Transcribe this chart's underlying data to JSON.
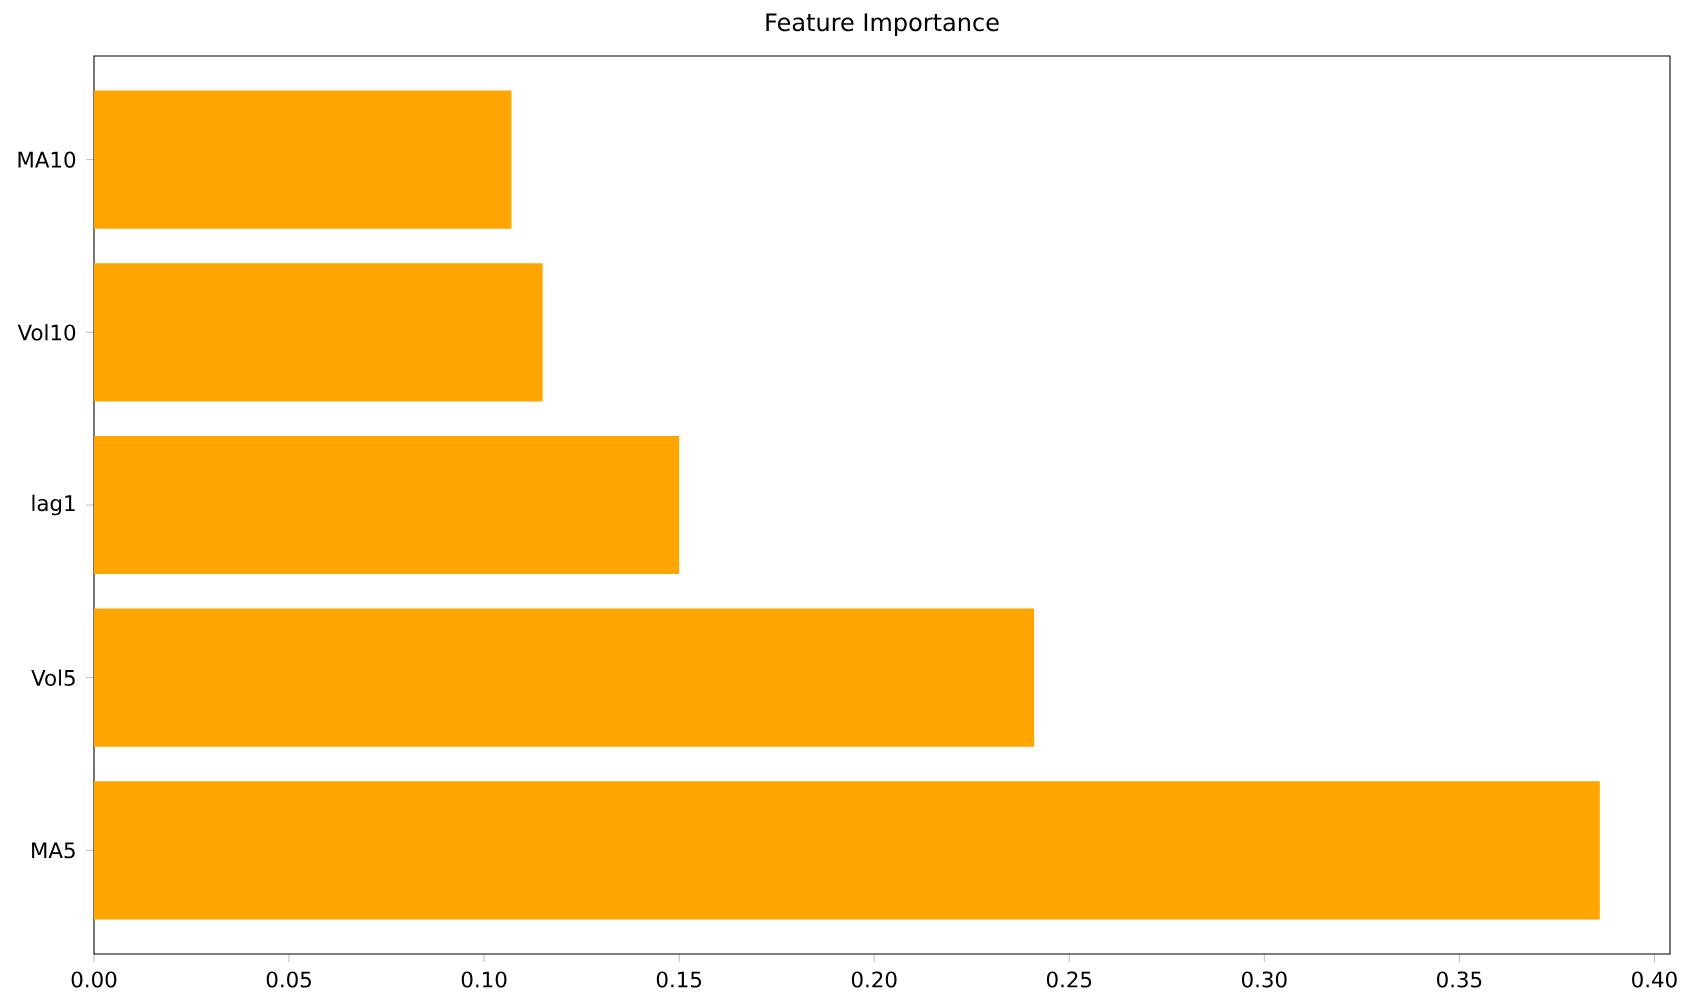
{
  "chart_data": {
    "type": "bar",
    "orientation": "horizontal",
    "title": "Feature Importance",
    "categories": [
      "MA10",
      "Vol10",
      "lag1",
      "Vol5",
      "MA5"
    ],
    "values": [
      0.107,
      0.115,
      0.15,
      0.241,
      0.386
    ],
    "color": "#ffa500",
    "xlim": [
      0,
      0.404
    ],
    "xticks": [
      {
        "value": 0,
        "label": "0.00"
      },
      {
        "value": 0.05,
        "label": "0.05"
      },
      {
        "value": 0.1,
        "label": "0.10"
      },
      {
        "value": 0.15,
        "label": "0.15"
      },
      {
        "value": 0.2,
        "label": "0.20"
      },
      {
        "value": 0.25,
        "label": "0.25"
      },
      {
        "value": 0.3,
        "label": "0.30"
      },
      {
        "value": 0.35,
        "label": "0.35"
      },
      {
        "value": 0.4,
        "label": "0.40"
      }
    ]
  }
}
